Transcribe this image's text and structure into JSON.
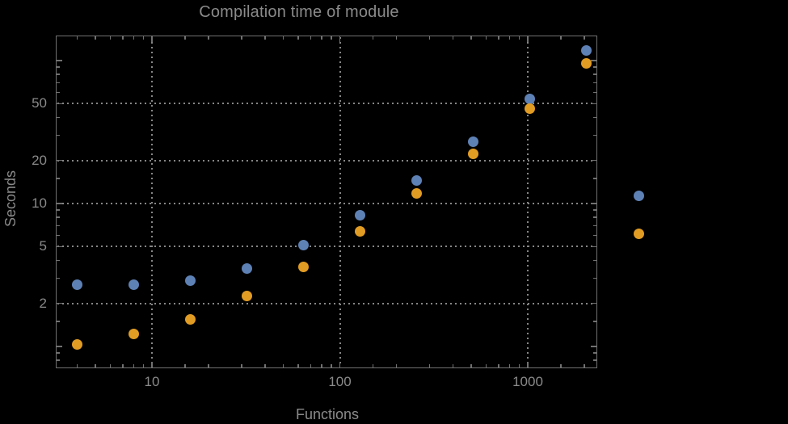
{
  "chart_data": {
    "type": "scatter",
    "title": "Compilation time of module",
    "xlabel": "Functions",
    "ylabel": "Seconds",
    "x_scale": "log10",
    "y_scale": "log10",
    "x_range": [
      3.1,
      2340
    ],
    "y_range": [
      0.7,
      150
    ],
    "grid": "dotted gridlines at labeled ticks only",
    "x": [
      4,
      8,
      16,
      32,
      64,
      128,
      256,
      512,
      1024,
      2048
    ],
    "series": [
      {
        "name": "series-1",
        "color": "#5e81b5",
        "values": [
          2.7,
          2.7,
          2.9,
          3.5,
          5.1,
          8.3,
          14.4,
          27,
          54,
          117
        ]
      },
      {
        "name": "series-2",
        "color": "#e19c24",
        "values": [
          1.03,
          1.22,
          1.55,
          2.25,
          3.6,
          6.35,
          11.8,
          22.4,
          46,
          95
        ]
      }
    ],
    "x_axis": {
      "label": "Functions",
      "ticks_labeled": [
        {
          "v": 10,
          "label": "10"
        },
        {
          "v": 100,
          "label": "100"
        },
        {
          "v": 1000,
          "label": "1000"
        }
      ],
      "ticks_minor": [
        4,
        5,
        6,
        7,
        8,
        9,
        15,
        20,
        30,
        40,
        50,
        60,
        70,
        80,
        90,
        150,
        200,
        300,
        400,
        500,
        600,
        700,
        800,
        900,
        1500,
        2000
      ]
    },
    "y_axis": {
      "label": "Seconds",
      "ticks_labeled": [
        {
          "v": 2,
          "label": "2"
        },
        {
          "v": 5,
          "label": "5"
        },
        {
          "v": 10,
          "label": "10"
        },
        {
          "v": 20,
          "label": "20"
        },
        {
          "v": 50,
          "label": "50"
        }
      ],
      "ticks_medium": [
        1,
        100
      ],
      "ticks_minor": [
        0.8,
        0.9,
        1.5,
        3,
        4,
        6,
        7,
        8,
        9,
        15,
        30,
        40,
        60,
        70,
        80,
        90
      ]
    },
    "legend": {
      "position": "right of frame, markers only (no visible label text)",
      "marker_colors": [
        "#5e81b5",
        "#e19c24"
      ]
    },
    "colors": {
      "background": "#000000",
      "frame": "#717171",
      "gridlines": "#868686",
      "text": "#8a8a8a",
      "series_1": "#5e81b5",
      "series_2": "#e19c24"
    }
  }
}
